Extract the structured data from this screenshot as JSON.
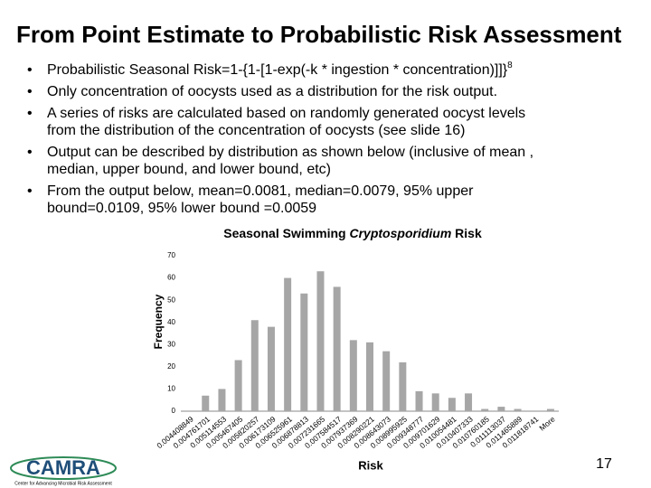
{
  "slide": {
    "title": "From Point Estimate to Probabilistic Risk Assessment",
    "bullets": [
      {
        "lines": [
          "Probabilistic Seasonal Risk=1-{1-[1-exp(-k * ingestion * concentration)]]}"
        ],
        "superscript": "8"
      },
      {
        "lines": [
          "Only concentration of oocysts  used as a distribution for the risk output."
        ]
      },
      {
        "lines": [
          "A series of risks are calculated based on randomly  generated oocyst levels",
          "from the distribution of the concentration of oocysts  (see slide 16)"
        ]
      },
      {
        "lines": [
          "Output can be described by distribution as shown below (inclusive of mean ,",
          "median, upper bound, and lower bound, etc)"
        ]
      },
      {
        "lines": [
          "From the output below, mean=0.0081, median=0.0079, 95% upper",
          "bound=0.0109,  95% lower bound =0.0059"
        ]
      }
    ],
    "logo": "CAMRA",
    "logo_caption": "Center for Advancing Microbial Risk Assessment",
    "page_number": "17"
  },
  "chart_data": {
    "type": "bar",
    "title": [
      {
        "text": "Seasonal  Swimming "
      },
      {
        "text": "Cryptosporidium",
        "italic": true
      },
      {
        "text": " Risk"
      }
    ],
    "x_label": "Risk",
    "y_label": "Frequency",
    "categories": [
      "0.004408849",
      "0.004761701",
      "0.005114553",
      "0.005467405",
      "0.005820257",
      "0.006173109",
      "0.006525961",
      "0.006878813",
      "0.007231665",
      "0.007584517",
      "0.007937369",
      "0.008290221",
      "0.008643073",
      "0.008995925",
      "0.009348777",
      "0.009701629",
      "0.010054481",
      "0.010407333",
      "0.010760185",
      "0.011113037",
      "0.011465889",
      "0.011818741",
      "More"
    ],
    "values": [
      0,
      7,
      10,
      23,
      41,
      38,
      60,
      53,
      63,
      56,
      32,
      31,
      27,
      22,
      9,
      8,
      6,
      8,
      1,
      2,
      1,
      0,
      1
    ],
    "color": "#a6a6a6",
    "ylim": [
      0,
      70
    ],
    "yticks": [
      0,
      10,
      20,
      30,
      40,
      50,
      60,
      70
    ],
    "grid": false
  }
}
